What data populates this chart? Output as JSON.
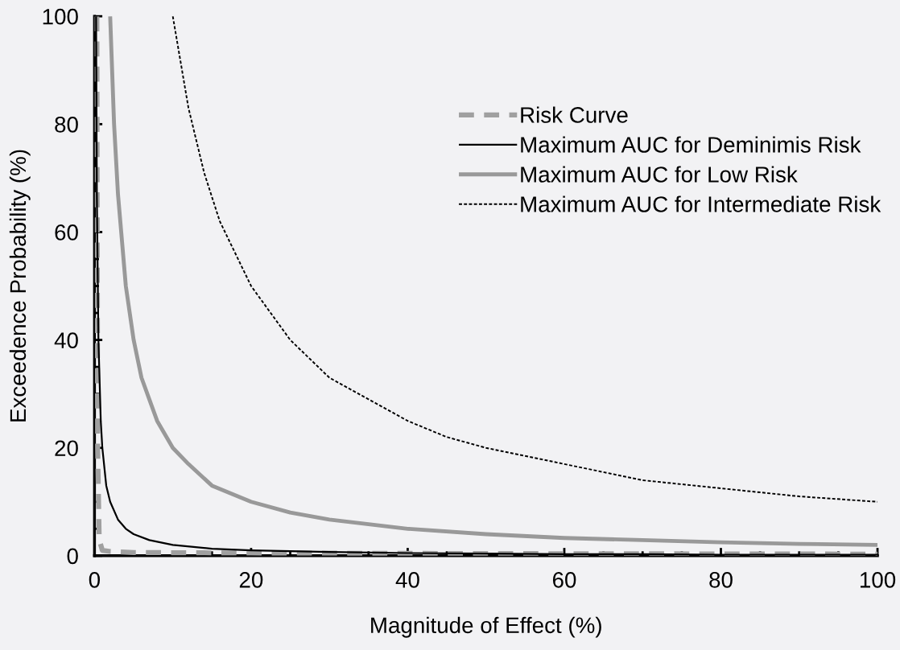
{
  "chart_data": {
    "type": "line",
    "xlabel": "Magnitude of Effect (%)",
    "ylabel": "Exceedence Probability (%)",
    "xlim": [
      0,
      100
    ],
    "ylim": [
      0,
      100
    ],
    "xticks": [
      0,
      20,
      40,
      60,
      80,
      100
    ],
    "yticks": [
      0,
      20,
      40,
      60,
      80,
      100
    ],
    "grid": false,
    "legend": "top right",
    "marker": "none",
    "series": [
      {
        "name": "Risk Curve",
        "color": "#a0a0a0",
        "line_style": "dashed",
        "x": [
          0.3,
          0.4,
          0.6,
          1,
          2,
          5,
          20,
          50,
          100
        ],
        "values": [
          100,
          20,
          3,
          1,
          0.8,
          0.6,
          0.5,
          0.4,
          0.3
        ]
      },
      {
        "name": "Maximum AUC for Deminimis Risk",
        "color": "#000000",
        "line_style": "solid",
        "x": [
          0.2,
          0.3,
          0.5,
          0.8,
          1,
          1.5,
          2,
          3,
          4,
          5,
          7,
          10,
          15,
          20,
          30,
          40,
          50,
          60,
          70,
          80,
          90,
          100
        ],
        "values": [
          100,
          67,
          40,
          25,
          20,
          13,
          10,
          6.7,
          5,
          4,
          2.9,
          2,
          1.3,
          1,
          0.7,
          0.5,
          0.4,
          0.3,
          0.3,
          0.2,
          0.2,
          0.2
        ]
      },
      {
        "name": "Maximum AUC for Low Risk",
        "color": "#999999",
        "line_style": "solid",
        "x": [
          2,
          2.5,
          3,
          4,
          5,
          6,
          7,
          8,
          10,
          12,
          15,
          20,
          25,
          30,
          40,
          50,
          60,
          70,
          80,
          90,
          100
        ],
        "values": [
          100,
          80,
          67,
          50,
          40,
          33,
          29,
          25,
          20,
          17,
          13,
          10,
          8,
          6.7,
          5,
          4,
          3.3,
          2.9,
          2.5,
          2.2,
          2
        ]
      },
      {
        "name": "Maximum AUC for Intermediate Risk",
        "color": "#000000",
        "line_style": "dotted",
        "x": [
          10,
          12,
          14,
          16,
          18,
          20,
          25,
          30,
          35,
          40,
          45,
          50,
          60,
          70,
          80,
          90,
          100
        ],
        "values": [
          100,
          83,
          71,
          62,
          56,
          50,
          40,
          33,
          29,
          25,
          22,
          20,
          17,
          14,
          12.5,
          11,
          10
        ]
      }
    ]
  }
}
